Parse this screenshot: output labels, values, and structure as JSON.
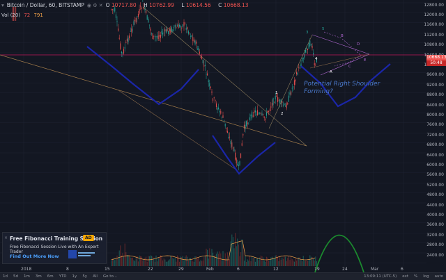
{
  "header": {
    "symbol": "Bitcoin / Dollar, 60, BITSTAMP",
    "ohlc": [
      {
        "label": "O",
        "value": "10717.80"
      },
      {
        "label": "H",
        "value": "10762.99"
      },
      {
        "label": "L",
        "value": "10614.56"
      },
      {
        "label": "C",
        "value": "10668.13"
      }
    ]
  },
  "volume_legend": {
    "label": "Vol (20)",
    "v1": "72",
    "v2": "791"
  },
  "price_axis": {
    "labels": [
      "12800.00",
      "12000.00",
      "11600.00",
      "11200.00",
      "10800.00",
      "10400.00",
      "10000.00",
      "9600.00",
      "9200.00",
      "8800.00",
      "8400.00",
      "8000.00",
      "7600.00",
      "7200.00",
      "6800.00",
      "6400.00",
      "6000.00",
      "5600.00",
      "5200.00",
      "4800.00",
      "4400.00",
      "4000.00",
      "3600.00",
      "3200.00",
      "2800.00",
      "2400.00"
    ],
    "current_price": "10668.13",
    "current_time": "50:48"
  },
  "time_axis": [
    "2018",
    "8",
    "15",
    "22",
    "29",
    "Feb",
    "6",
    "12",
    "19",
    "24",
    "Mar",
    "6"
  ],
  "bottom_toolbar": {
    "ranges": [
      "1d",
      "5d",
      "1m",
      "3m",
      "6m",
      "YTD",
      "1y",
      "5y",
      "All",
      "Go to..."
    ],
    "clock": "13:09:11 (UTC-5)",
    "options": [
      "ext",
      "%",
      "log",
      "auto"
    ]
  },
  "promo": {
    "title": "Free Fibonacci Training Session",
    "badge": "AD",
    "subtitle": "Free Fibonacci Session Live with An Expert Trader",
    "cta": "Find Out More Now",
    "close": "×"
  },
  "annotation": {
    "line1": "Potential Right Shoulder",
    "line2": "Forming?"
  },
  "wave_labels": [
    "1",
    "2",
    "3",
    "4",
    "5",
    "A",
    "B",
    "C",
    "D",
    "E"
  ],
  "colors": {
    "background": "#131722",
    "up": "#26a69a",
    "down": "#ef5350",
    "curve": "#1b26a8",
    "arc": "#1b8a2e",
    "accent": "#b46ad6"
  }
}
